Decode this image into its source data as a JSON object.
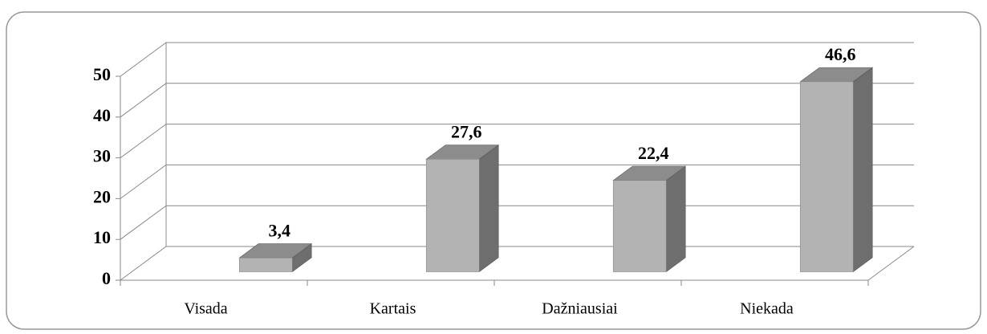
{
  "chart_data": {
    "type": "bar3d",
    "categories": [
      "Visada",
      "Kartais",
      "Dažniausiai",
      "Niekada"
    ],
    "values": [
      3.4,
      27.6,
      22.4,
      46.6
    ],
    "value_labels": [
      "3,4",
      "27,6",
      "22,4",
      "46,6"
    ],
    "color": "#b3b3b3",
    "ylim": [
      0,
      50
    ],
    "yticks": [
      0,
      10,
      20,
      30,
      40,
      50
    ],
    "grid": true
  }
}
